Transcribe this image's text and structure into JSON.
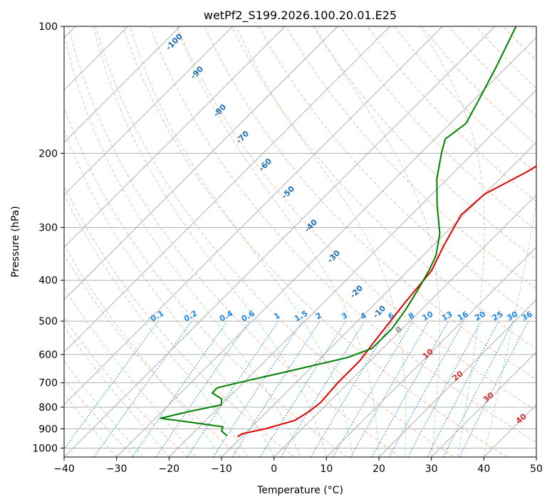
{
  "chart_data": {
    "type": "line",
    "subtype": "skew-T log-P diagram",
    "title": "wetPf2_S199.2026.100.20.01.E25",
    "xlabel": "Temperature (°C)",
    "ylabel": "Pressure (hPa)",
    "xlim": [
      -40,
      50
    ],
    "ylim": [
      1050,
      100
    ],
    "x_ticks": [
      -40,
      -30,
      -20,
      -10,
      0,
      10,
      20,
      30,
      40,
      50
    ],
    "x_tick_labels": [
      "−40",
      "−30",
      "−20",
      "−10",
      "0",
      "10",
      "20",
      "30",
      "40",
      "50"
    ],
    "y_ticks": [
      1000,
      900,
      800,
      700,
      600,
      500,
      400,
      300,
      200,
      100
    ],
    "y_tick_labels": [
      "1000",
      "900",
      "800",
      "700",
      "600",
      "500",
      "400",
      "300",
      "200",
      "100"
    ],
    "grid": true,
    "series": [
      {
        "name": "Temperature",
        "color": "#e00000",
        "points": [
          [
            -10.8,
            940
          ],
          [
            -10.5,
            925
          ],
          [
            -7,
            900
          ],
          [
            -3,
            860
          ],
          [
            -2,
            820
          ],
          [
            -1.5,
            780
          ],
          [
            -2,
            700
          ],
          [
            -2,
            620
          ],
          [
            -3,
            550
          ],
          [
            -4.5,
            450
          ],
          [
            -5.5,
            380
          ],
          [
            -8,
            330
          ],
          [
            -10.5,
            280
          ],
          [
            -10,
            250
          ],
          [
            -6,
            220
          ],
          [
            -3.5,
            195
          ],
          [
            -5.5,
            170
          ],
          [
            -7,
            150
          ],
          [
            -7,
            135
          ],
          [
            -8,
            120
          ],
          [
            -8.5,
            100
          ]
        ]
      },
      {
        "name": "Dewpoint",
        "color": "#008000",
        "points": [
          [
            -13,
            935
          ],
          [
            -15,
            910
          ],
          [
            -15.5,
            890
          ],
          [
            -22,
            870
          ],
          [
            -29,
            850
          ],
          [
            -25,
            820
          ],
          [
            -20,
            790
          ],
          [
            -21,
            765
          ],
          [
            -24,
            740
          ],
          [
            -24,
            720
          ],
          [
            -21,
            700
          ],
          [
            -14,
            660
          ],
          [
            -5,
            610
          ],
          [
            -2,
            580
          ],
          [
            -2,
            520
          ],
          [
            -3,
            470
          ],
          [
            -4.5,
            420
          ],
          [
            -6,
            380
          ],
          [
            -7.5,
            350
          ],
          [
            -11,
            310
          ],
          [
            -17,
            265
          ],
          [
            -22,
            230
          ],
          [
            -26,
            200
          ],
          [
            -28,
            185
          ],
          [
            -27,
            170
          ],
          [
            -29,
            150
          ],
          [
            -32,
            125
          ],
          [
            -36,
            100
          ]
        ]
      }
    ],
    "mixing_ratio_labels": [
      "0.1",
      "0.2",
      "0.4",
      "0.6",
      "1",
      "1.5",
      "2",
      "3",
      "4",
      "6",
      "8",
      "10",
      "13",
      "16",
      "20",
      "25",
      "30",
      "36"
    ],
    "mixing_ratio_values": [
      0.1,
      0.2,
      0.4,
      0.6,
      1,
      1.5,
      2,
      3,
      4,
      6,
      8,
      10,
      13,
      16,
      20,
      25,
      30,
      36
    ],
    "dry_adiabat_labels": [
      "-100",
      "-90",
      "-80",
      "-70",
      "-60",
      "-50",
      "-40",
      "-30",
      "-20",
      "-10"
    ],
    "moist_adiabat_labels": [
      "0",
      "10",
      "20",
      "30",
      "40"
    ]
  }
}
